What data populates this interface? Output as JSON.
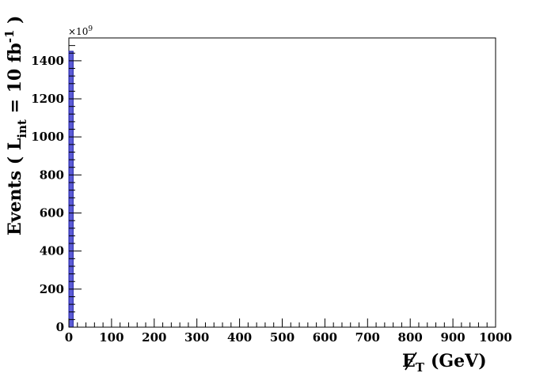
{
  "chart_data": {
    "type": "bar",
    "title": "",
    "xlabel": {
      "main": "E",
      "sub": "T",
      "unit": "(GeV)"
    },
    "ylabel": {
      "pre": "Events  ( L",
      "sub": "int",
      "mid": " = 10 fb",
      "sup": "-1",
      "post": " )"
    },
    "y_multiplier": {
      "base": "×10",
      "exp": "9"
    },
    "xlim": [
      0,
      1000
    ],
    "ylim": [
      0,
      1520
    ],
    "x_ticks": [
      0,
      100,
      200,
      300,
      400,
      500,
      600,
      700,
      800,
      900,
      1000
    ],
    "x_tick_labels": [
      "0",
      "100",
      "200",
      "300",
      "400",
      "500",
      "600",
      "700",
      "800",
      "900",
      "1000"
    ],
    "y_ticks": [
      0,
      200,
      400,
      600,
      800,
      1000,
      1200,
      1400
    ],
    "y_tick_labels": [
      "0",
      "200",
      "400",
      "600",
      "800",
      "1000",
      "1200",
      "1400"
    ],
    "bin_width": 10,
    "bins": [
      {
        "x0": 0,
        "x1": 10,
        "value": 1450
      }
    ],
    "colors": {
      "fill": "#5b5bd6",
      "edge": "#1a1aa0",
      "axis": "#000000"
    },
    "grid": false,
    "legend": "none"
  }
}
